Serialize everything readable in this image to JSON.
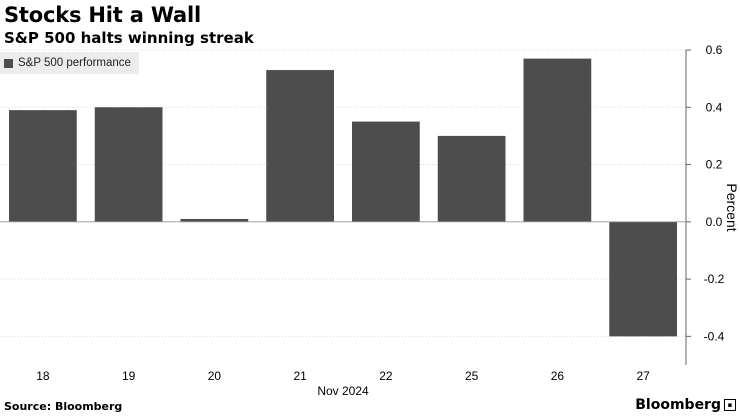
{
  "header": {
    "title": "Stocks Hit a Wall",
    "subtitle": "S&P 500 halts winning streak"
  },
  "footer": {
    "source": "Source: Bloomberg",
    "brand": "Bloomberg"
  },
  "chart_data": {
    "type": "bar",
    "title": "Stocks Hit a Wall",
    "subtitle": "S&P 500 halts winning streak",
    "categories": [
      "18",
      "19",
      "20",
      "21",
      "22",
      "25",
      "26",
      "27"
    ],
    "xlabel": "Nov 2024",
    "ylabel": "Percent",
    "ylim": [
      -0.5,
      0.6
    ],
    "yticks": [
      -0.4,
      -0.2,
      0.0,
      0.2,
      0.4,
      0.6
    ],
    "ytick_labels": [
      "-0.4",
      "-0.2",
      "0.0",
      "0.2",
      "0.4",
      "0.6"
    ],
    "series": [
      {
        "name": "S&P 500 performance",
        "values": [
          0.39,
          0.4,
          0.01,
          0.53,
          0.35,
          0.3,
          0.57,
          -0.4
        ],
        "color": "#4d4d4d"
      }
    ],
    "legend": "top-left",
    "grid": true,
    "y_axis_position": "right"
  }
}
